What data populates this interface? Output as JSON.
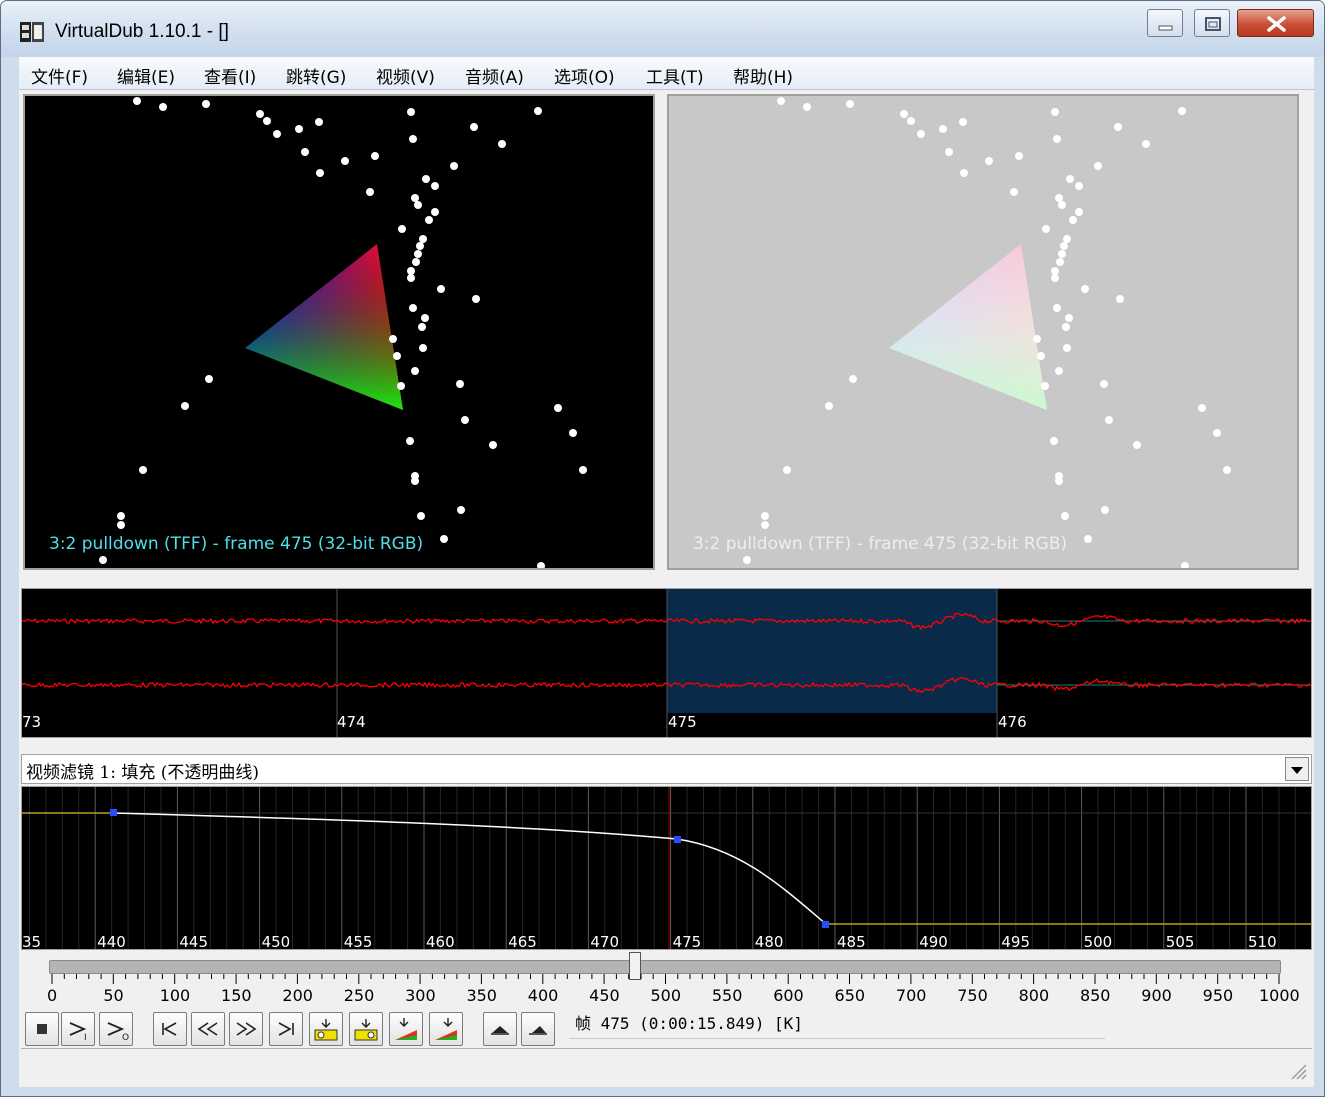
{
  "window": {
    "title": "VirtualDub 1.10.1 - []"
  },
  "menu": [
    "文件(F)",
    "编辑(E)",
    "查看(I)",
    "跳转(G)",
    "视频(V)",
    "音频(A)",
    "选项(O)",
    "工具(T)",
    "帮助(H)"
  ],
  "input_pane": {
    "caption": "3:2 pulldown (TFF) - frame 475 (32-bit RGB)"
  },
  "output_pane": {
    "caption": "3:2 pulldown (TFF) - frame 475 (32-bit RGB)"
  },
  "audio_waveform": {
    "frame_labels": [
      "73",
      "474",
      "475",
      "476"
    ]
  },
  "filter_selector": {
    "selected": "视频滤镜 1: 填充 (不透明曲线)"
  },
  "curve_editor": {
    "frame_labels": [
      "35",
      "440",
      "445",
      "450",
      "455",
      "460",
      "465",
      "470",
      "475",
      "480",
      "485",
      "490",
      "495",
      "500",
      "505",
      "510"
    ]
  },
  "timeline": {
    "position_fraction": 0.475,
    "tick_labels": [
      "0",
      "50",
      "100",
      "150",
      "200",
      "250",
      "300",
      "350",
      "400",
      "450",
      "500",
      "550",
      "600",
      "650",
      "700",
      "750",
      "800",
      "850",
      "900",
      "950",
      "1000"
    ]
  },
  "toolbar": {
    "buttons": [
      "stop-icon",
      "play-input-icon",
      "play-output-icon",
      "go-start-icon",
      "prev-frame-icon",
      "next-frame-icon",
      "go-end-icon",
      "prev-key-icon",
      "next-key-icon",
      "prev-scene-icon",
      "next-scene-icon",
      "mark-in-icon",
      "mark-out-icon"
    ]
  },
  "status": {
    "frame_text": "帧 475 (0:00:15.849) [K]"
  },
  "colors": {
    "waveform": "#ff0000",
    "selection": "#0a2a4a",
    "curve": "#ffffff",
    "output_bg": "#c8c8c8"
  }
}
